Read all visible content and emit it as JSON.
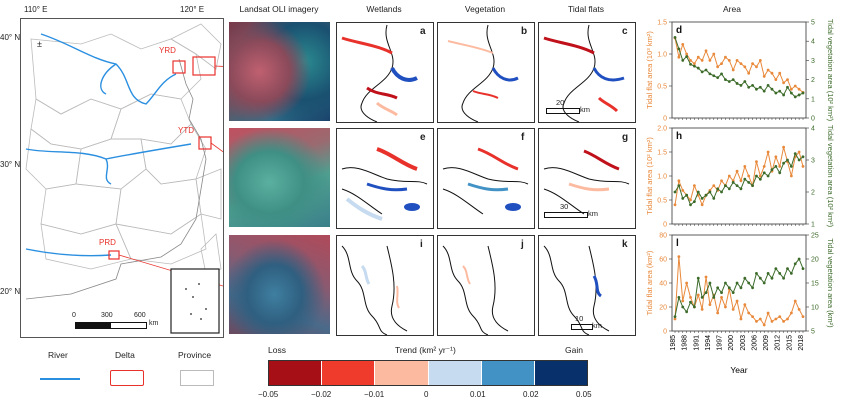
{
  "map": {
    "lon_labels": [
      "110° E",
      "120° E"
    ],
    "lat_labels": [
      "40° N",
      "30° N",
      "20° N"
    ],
    "deltas": [
      "YRD",
      "YTD",
      "PRD"
    ],
    "scale_ticks": [
      "0",
      "300",
      "600"
    ],
    "scale_unit": "km",
    "compass": "±"
  },
  "legend": {
    "river": "River",
    "delta": "Delta",
    "province": "Province",
    "river_color": "#2b8fe0",
    "delta_color": "#e8312b",
    "province_color": "#bbbbbb"
  },
  "columns": {
    "imagery": "Landsat OLI imagery",
    "wetlands": "Wetlands",
    "vegetation": "Vegetation",
    "tidal": "Tidal flats",
    "area": "Area"
  },
  "panel_letters": [
    "a",
    "b",
    "c",
    "e",
    "f",
    "g",
    "i",
    "j",
    "k"
  ],
  "scalebars": [
    {
      "value": "20",
      "unit": "km"
    },
    {
      "value": "30",
      "unit": "km"
    },
    {
      "value": "10",
      "unit": "km"
    }
  ],
  "colorbar": {
    "loss": "Loss",
    "title": "Trend (km² yr⁻¹)",
    "gain": "Gain",
    "ticks": [
      "−0.05",
      "−0.02",
      "−0.01",
      "0",
      "0.01",
      "0.02",
      "0.05"
    ],
    "colors": [
      "#a50f15",
      "#ef3b2c",
      "#fcbba1",
      "#c6dbef",
      "#4292c6",
      "#08306b"
    ]
  },
  "chart_data": [
    {
      "type": "line",
      "panel": "d",
      "title": "",
      "xlabel": "",
      "ylabel_left": "Tidal flat area (10³ km²)",
      "ylabel_right": "Tidal vegetation area (10² km²)",
      "ylim_left": [
        0,
        1.5
      ],
      "yticks_left": [
        "0",
        "0.5",
        "1.0",
        "1.5"
      ],
      "ylim_right": [
        0,
        5
      ],
      "yticks_right": [
        "0",
        "1",
        "2",
        "3",
        "4",
        "5"
      ],
      "x": [
        1985,
        1986,
        1987,
        1988,
        1989,
        1990,
        1991,
        1992,
        1993,
        1994,
        1995,
        1996,
        1997,
        1998,
        1999,
        2000,
        2001,
        2002,
        2003,
        2004,
        2005,
        2006,
        2007,
        2008,
        2009,
        2010,
        2011,
        2012,
        2013,
        2014,
        2015,
        2016,
        2017,
        2018
      ],
      "series": [
        {
          "color": "#e8893b",
          "axis": "left",
          "values": [
            1.25,
            0.95,
            1.15,
            1.0,
            0.9,
            0.85,
            0.95,
            0.9,
            1.05,
            0.9,
            1.0,
            0.8,
            0.85,
            0.95,
            0.9,
            0.75,
            0.9,
            0.85,
            0.8,
            0.7,
            0.85,
            0.8,
            0.9,
            0.65,
            0.75,
            0.7,
            0.6,
            0.7,
            0.55,
            0.6,
            0.45,
            0.5,
            0.45,
            0.4
          ]
        },
        {
          "color": "#3c6b2a",
          "axis": "right",
          "values": [
            4.2,
            3.6,
            3.0,
            3.2,
            2.8,
            2.7,
            2.6,
            2.4,
            2.5,
            2.3,
            2.2,
            2.1,
            2.3,
            2.0,
            1.9,
            2.0,
            1.8,
            1.7,
            1.9,
            1.6,
            1.7,
            1.5,
            1.6,
            1.4,
            1.7,
            1.5,
            1.3,
            1.4,
            1.2,
            1.6,
            1.3,
            1.1,
            1.2,
            1.3
          ]
        }
      ]
    },
    {
      "type": "line",
      "panel": "h",
      "title": "",
      "xlabel": "",
      "ylabel_left": "Tidal flat area (10² km²)",
      "ylabel_right": "Tidal vegetation area (10² km²)",
      "ylim_left": [
        0,
        2.0
      ],
      "yticks_left": [
        "0",
        "0.5",
        "1.0",
        "1.5",
        "2.0"
      ],
      "ylim_right": [
        1,
        4
      ],
      "yticks_right": [
        "1",
        "2",
        "3",
        "4"
      ],
      "x": [
        1985,
        1986,
        1987,
        1988,
        1989,
        1990,
        1991,
        1992,
        1993,
        1994,
        1995,
        1996,
        1997,
        1998,
        1999,
        2000,
        2001,
        2002,
        2003,
        2004,
        2005,
        2006,
        2007,
        2008,
        2009,
        2010,
        2011,
        2012,
        2013,
        2014,
        2015,
        2016,
        2017,
        2018
      ],
      "series": [
        {
          "color": "#e8893b",
          "axis": "left",
          "values": [
            0.4,
            0.9,
            0.7,
            0.6,
            0.5,
            0.8,
            0.6,
            0.4,
            0.6,
            0.7,
            0.8,
            0.7,
            0.9,
            0.8,
            1.0,
            0.9,
            1.1,
            0.9,
            1.2,
            1.0,
            0.8,
            1.3,
            1.0,
            1.2,
            1.5,
            1.1,
            1.4,
            1.2,
            1.6,
            1.3,
            1.0,
            1.4,
            1.5,
            1.2
          ]
        },
        {
          "color": "#3c6b2a",
          "axis": "right",
          "values": [
            2.0,
            2.2,
            1.8,
            1.9,
            1.6,
            1.7,
            2.0,
            1.8,
            1.9,
            2.0,
            1.8,
            2.1,
            2.0,
            2.2,
            2.1,
            2.3,
            2.2,
            2.1,
            2.4,
            2.3,
            2.2,
            2.5,
            2.4,
            2.6,
            2.5,
            2.7,
            2.8,
            2.6,
            2.9,
            3.0,
            2.8,
            3.2,
            3.0,
            3.1
          ]
        }
      ]
    },
    {
      "type": "line",
      "panel": "l",
      "title": "",
      "xlabel": "Year",
      "ylabel_left": "Tidal flat area (km²)",
      "ylabel_right": "Tidal vegetation area (km²)",
      "ylim_left": [
        0,
        80
      ],
      "yticks_left": [
        "0",
        "20",
        "40",
        "60",
        "80"
      ],
      "ylim_right": [
        5,
        25
      ],
      "yticks_right": [
        "5",
        "10",
        "15",
        "20",
        "25"
      ],
      "x": [
        1985,
        1986,
        1987,
        1988,
        1989,
        1990,
        1991,
        1992,
        1993,
        1994,
        1995,
        1996,
        1997,
        1998,
        1999,
        2000,
        2001,
        2002,
        2003,
        2004,
        2005,
        2006,
        2007,
        2008,
        2009,
        2010,
        2011,
        2012,
        2013,
        2014,
        2015,
        2016,
        2017,
        2018
      ],
      "xticks": [
        "1985",
        "1988",
        "1991",
        "1994",
        "1997",
        "2000",
        "2003",
        "2006",
        "2009",
        "2012",
        "2015",
        "2018"
      ],
      "series": [
        {
          "color": "#e8893b",
          "axis": "left",
          "values": [
            10,
            62,
            25,
            40,
            28,
            20,
            30,
            18,
            45,
            22,
            30,
            15,
            28,
            20,
            35,
            18,
            25,
            10,
            22,
            15,
            12,
            8,
            10,
            5,
            15,
            8,
            10,
            12,
            8,
            10,
            15,
            25,
            18,
            12
          ]
        },
        {
          "color": "#3c6b2a",
          "axis": "right",
          "values": [
            8,
            12,
            10,
            9,
            11,
            10,
            16,
            12,
            13,
            15,
            12,
            14,
            13,
            15,
            14,
            13,
            15,
            14,
            16,
            15,
            14,
            17,
            16,
            15,
            17,
            16,
            18,
            17,
            16,
            18,
            17,
            19,
            20,
            18
          ]
        }
      ]
    }
  ]
}
